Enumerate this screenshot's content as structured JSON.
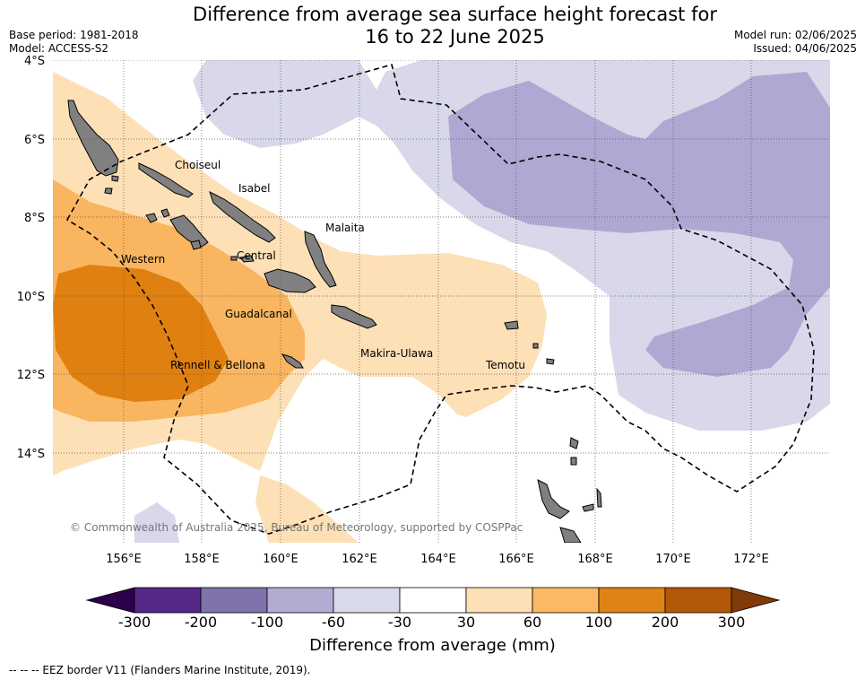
{
  "header": {
    "title_line1": "Difference from average sea surface height forecast for",
    "title_line2": "16 to 22 June 2025",
    "base_period": "Base period: 1981-2018",
    "model": "Model: ACCESS-S2",
    "model_run": "Model run: 02/06/2025",
    "issued": "Issued: 04/06/2025"
  },
  "map": {
    "lat_labels": [
      "4°S",
      "6°S",
      "8°S",
      "10°S",
      "12°S",
      "14°S"
    ],
    "lon_labels": [
      "156°E",
      "158°E",
      "160°E",
      "162°E",
      "164°E",
      "166°E",
      "168°E",
      "170°E",
      "172°E"
    ],
    "provinces": [
      "Choiseul",
      "Isabel",
      "Malaita",
      "Western",
      "Central",
      "Guadalcanal",
      "Rennell & Bellona",
      "Makira-Ulawa",
      "Temotu"
    ],
    "copyright": "© Commonwealth of Australia 2025, Bureau of Meteorology, supported by COSPPac",
    "colors": {
      "land": "#808080",
      "orange_30_60": "#fde0b6",
      "orange_60_100": "#f9b55f",
      "orange_100_200": "#e08010",
      "purple_m60_m30": "#d8d8ea",
      "purple_m100_m60": "#b0a8d2"
    }
  },
  "colorbar": {
    "label": "Difference from average (mm)",
    "ticks": [
      "-300",
      "-200",
      "-100",
      "-60",
      "-30",
      "30",
      "60",
      "100",
      "200",
      "300"
    ],
    "colors": [
      "#542788",
      "#8073ac",
      "#b2abd2",
      "#d8daeb",
      "#ffffff",
      "#fee0b6",
      "#fdb863",
      "#e08214",
      "#b35806"
    ],
    "under_color": "#2d004b",
    "over_color": "#7f3b08"
  },
  "footnote": "--  --  -- EEZ border V11 (Flanders Marine Institute, 2019)."
}
